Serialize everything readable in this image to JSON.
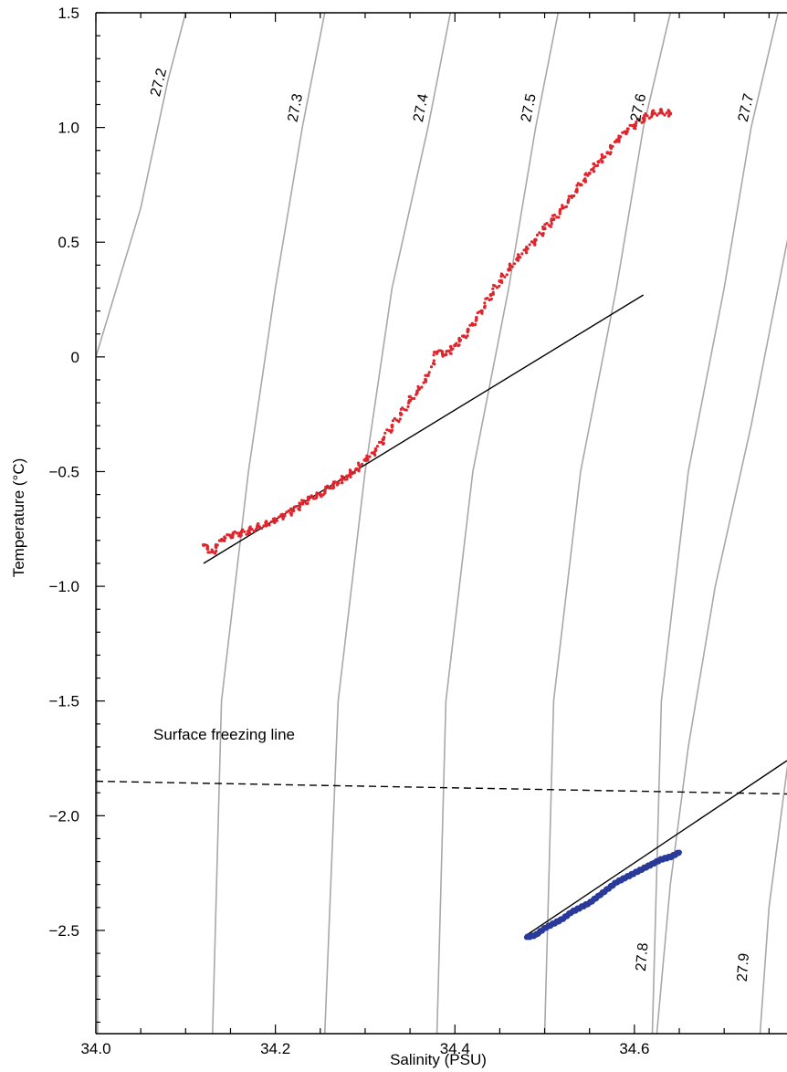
{
  "chart_data": {
    "type": "scatter",
    "title": "",
    "xlabel": "Salinity (PSU)",
    "ylabel": "Temperature (°C)",
    "xlim": [
      34.0,
      34.77
    ],
    "ylim": [
      -2.95,
      1.5
    ],
    "x_ticks": [
      {
        "value": 34.0,
        "label": "34.0"
      },
      {
        "value": 34.2,
        "label": "34.2"
      },
      {
        "value": 34.4,
        "label": "34.4"
      },
      {
        "value": 34.6,
        "label": "34.6"
      }
    ],
    "y_ticks": [
      {
        "value": 1.5,
        "label": "1.5"
      },
      {
        "value": 1.0,
        "label": "1.0"
      },
      {
        "value": 0.5,
        "label": "0.5"
      },
      {
        "value": 0,
        "label": "0"
      },
      {
        "value": -0.5,
        "label": "−0.5"
      },
      {
        "value": -1.0,
        "label": "−1.0"
      },
      {
        "value": -1.5,
        "label": "−1.5"
      },
      {
        "value": -2.0,
        "label": "−2.0"
      },
      {
        "value": -2.5,
        "label": "−2.5"
      }
    ],
    "isopycnals": [
      {
        "label": "27.2",
        "label_pos": "top",
        "points": [
          [
            34.002,
            -2.95
          ],
          [
            34.0,
            0.0
          ],
          [
            34.05,
            0.65
          ],
          [
            34.08,
            1.2
          ],
          [
            34.1,
            1.5
          ]
        ]
      },
      {
        "label": "27.3",
        "label_pos": "top",
        "points": [
          [
            34.13,
            -2.95
          ],
          [
            34.14,
            -1.5
          ],
          [
            34.17,
            -0.5
          ],
          [
            34.2,
            0.3
          ],
          [
            34.23,
            1.0
          ],
          [
            34.255,
            1.5
          ]
        ]
      },
      {
        "label": "27.4",
        "label_pos": "top",
        "points": [
          [
            34.255,
            -2.95
          ],
          [
            34.27,
            -1.5
          ],
          [
            34.3,
            -0.5
          ],
          [
            34.33,
            0.3
          ],
          [
            34.37,
            1.0
          ],
          [
            34.395,
            1.5
          ]
        ]
      },
      {
        "label": "27.5",
        "label_pos": "top",
        "points": [
          [
            34.38,
            -2.95
          ],
          [
            34.39,
            -1.5
          ],
          [
            34.42,
            -0.5
          ],
          [
            34.46,
            0.3
          ],
          [
            34.49,
            1.0
          ],
          [
            34.515,
            1.5
          ]
        ]
      },
      {
        "label": "27.6",
        "label_pos": "top",
        "points": [
          [
            34.5,
            -2.95
          ],
          [
            34.51,
            -1.5
          ],
          [
            34.54,
            -0.5
          ],
          [
            34.58,
            0.3
          ],
          [
            34.61,
            1.0
          ],
          [
            34.64,
            1.5
          ]
        ]
      },
      {
        "label": "27.7",
        "label_pos": "top",
        "points": [
          [
            34.62,
            -2.95
          ],
          [
            34.63,
            -1.5
          ],
          [
            34.66,
            -0.5
          ],
          [
            34.7,
            0.3
          ],
          [
            34.73,
            1.0
          ],
          [
            34.76,
            1.5
          ]
        ]
      },
      {
        "label": "27.8",
        "label_pos": "bottom",
        "points": [
          [
            34.625,
            -2.95
          ],
          [
            34.64,
            -2.3
          ],
          [
            34.66,
            -1.7
          ],
          [
            34.69,
            -1.0
          ],
          [
            34.73,
            -0.3
          ],
          [
            34.76,
            0.3
          ],
          [
            34.79,
            0.9
          ]
        ]
      },
      {
        "label": "27.9",
        "label_pos": "bottom",
        "points": [
          [
            34.74,
            -2.95
          ],
          [
            34.75,
            -2.4
          ],
          [
            34.77,
            -1.8
          ],
          [
            34.79,
            -1.3
          ]
        ]
      }
    ],
    "freezing_line": {
      "label": "Surface freezing line",
      "points": [
        [
          34.0,
          -1.85
        ],
        [
          34.77,
          -1.905
        ]
      ]
    },
    "series": [
      {
        "color": "#e0242c",
        "points": [
          [
            34.12,
            -0.82
          ],
          [
            34.13,
            -0.85
          ],
          [
            34.14,
            -0.8
          ],
          [
            34.15,
            -0.78
          ],
          [
            34.16,
            -0.77
          ],
          [
            34.17,
            -0.76
          ],
          [
            34.18,
            -0.74
          ],
          [
            34.19,
            -0.73
          ],
          [
            34.2,
            -0.71
          ],
          [
            34.21,
            -0.69
          ],
          [
            34.22,
            -0.67
          ],
          [
            34.23,
            -0.64
          ],
          [
            34.24,
            -0.61
          ],
          [
            34.25,
            -0.6
          ],
          [
            34.26,
            -0.57
          ],
          [
            34.27,
            -0.55
          ],
          [
            34.28,
            -0.52
          ],
          [
            34.29,
            -0.49
          ],
          [
            34.3,
            -0.45
          ],
          [
            34.31,
            -0.42
          ],
          [
            34.32,
            -0.36
          ],
          [
            34.33,
            -0.3
          ],
          [
            34.34,
            -0.25
          ],
          [
            34.35,
            -0.19
          ],
          [
            34.36,
            -0.14
          ],
          [
            34.37,
            -0.08
          ],
          [
            34.38,
            0.02
          ],
          [
            34.39,
            0.01
          ],
          [
            34.4,
            0.05
          ],
          [
            34.41,
            0.09
          ],
          [
            34.42,
            0.14
          ],
          [
            34.43,
            0.2
          ],
          [
            34.44,
            0.27
          ],
          [
            34.45,
            0.33
          ],
          [
            34.46,
            0.38
          ],
          [
            34.47,
            0.43
          ],
          [
            34.48,
            0.47
          ],
          [
            34.49,
            0.51
          ],
          [
            34.5,
            0.56
          ],
          [
            34.51,
            0.6
          ],
          [
            34.52,
            0.65
          ],
          [
            34.53,
            0.7
          ],
          [
            34.54,
            0.75
          ],
          [
            34.55,
            0.8
          ],
          [
            34.56,
            0.85
          ],
          [
            34.57,
            0.89
          ],
          [
            34.58,
            0.94
          ],
          [
            34.59,
            0.98
          ],
          [
            34.6,
            1.01
          ],
          [
            34.61,
            1.04
          ],
          [
            34.62,
            1.06
          ],
          [
            34.63,
            1.07
          ],
          [
            34.64,
            1.06
          ]
        ]
      },
      {
        "color": "#2a3a9a",
        "points": [
          [
            34.48,
            -2.53
          ],
          [
            34.49,
            -2.52
          ],
          [
            34.5,
            -2.49
          ],
          [
            34.51,
            -2.47
          ],
          [
            34.52,
            -2.45
          ],
          [
            34.53,
            -2.42
          ],
          [
            34.54,
            -2.4
          ],
          [
            34.55,
            -2.38
          ],
          [
            34.56,
            -2.35
          ],
          [
            34.57,
            -2.32
          ],
          [
            34.58,
            -2.29
          ],
          [
            34.59,
            -2.27
          ],
          [
            34.6,
            -2.25
          ],
          [
            34.61,
            -2.23
          ],
          [
            34.62,
            -2.21
          ],
          [
            34.63,
            -2.19
          ],
          [
            34.64,
            -2.18
          ],
          [
            34.65,
            -2.16
          ]
        ]
      }
    ],
    "fit_lines": [
      {
        "points": [
          [
            34.12,
            -0.9
          ],
          [
            34.61,
            0.27
          ]
        ]
      },
      {
        "points": [
          [
            34.48,
            -2.52
          ],
          [
            34.77,
            -1.76
          ]
        ]
      }
    ],
    "grid": false,
    "legend": "none"
  }
}
